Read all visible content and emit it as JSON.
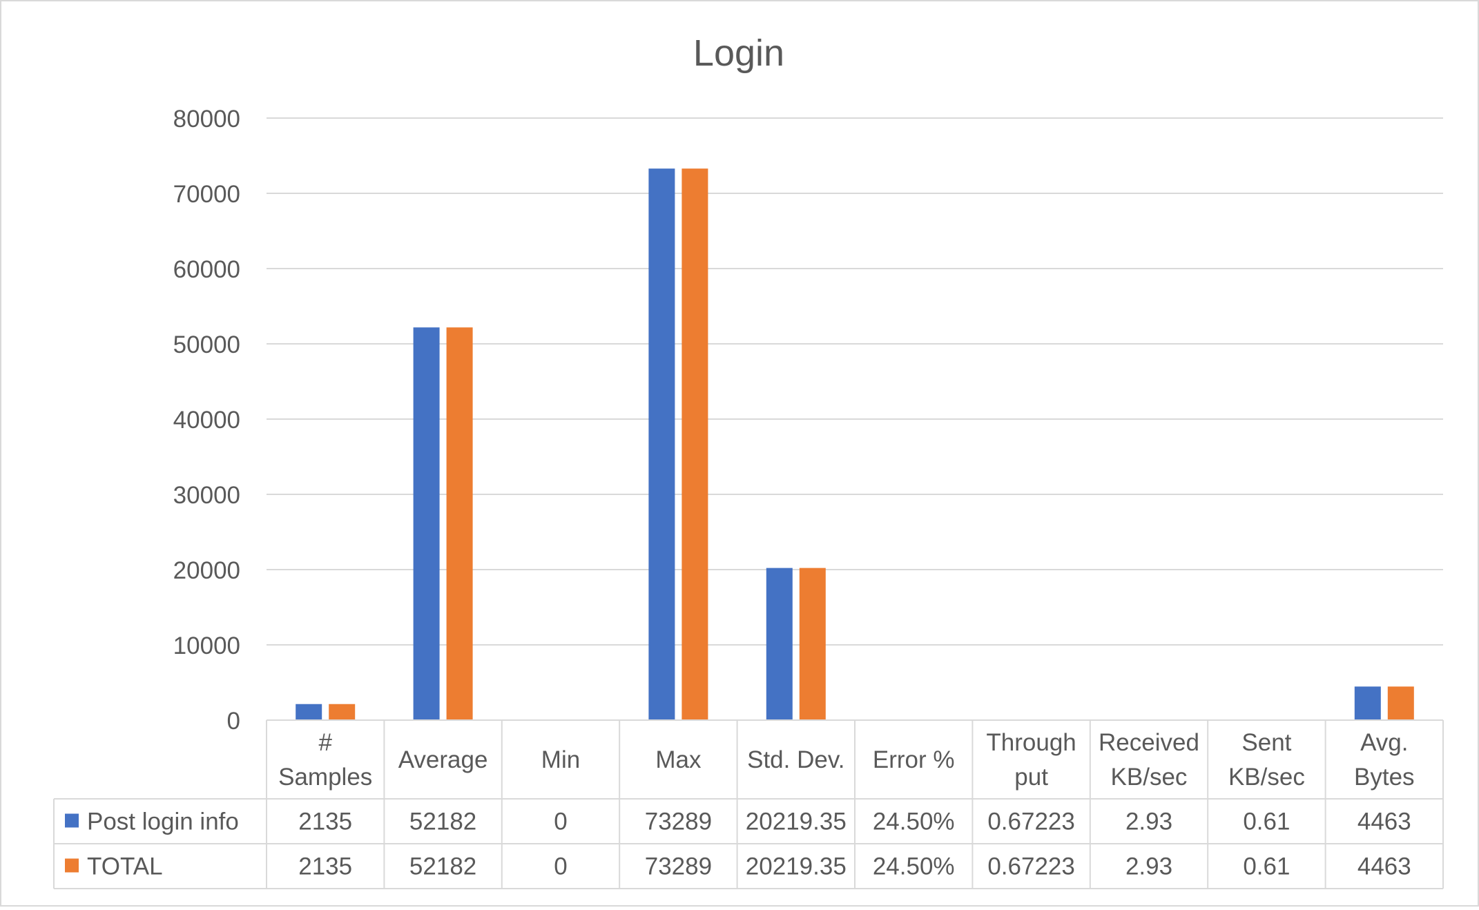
{
  "chart_data": {
    "type": "bar",
    "title": "Login",
    "categories": [
      [
        "#",
        "Samples"
      ],
      [
        "Average"
      ],
      [
        "Min"
      ],
      [
        "Max"
      ],
      [
        "Std. Dev."
      ],
      [
        "Error %"
      ],
      [
        "Through",
        "put"
      ],
      [
        "Received",
        "KB/sec"
      ],
      [
        "Sent",
        "KB/sec"
      ],
      [
        "Avg.",
        "Bytes"
      ]
    ],
    "series": [
      {
        "name": "Post login info",
        "color": "#4472C4",
        "values": [
          2135,
          52182,
          0,
          73289,
          20219.35,
          24.5,
          0.67223,
          2.93,
          0.61,
          4463
        ],
        "table_values": [
          "2135",
          "52182",
          "0",
          "73289",
          "20219.35",
          "24.50%",
          "0.67223",
          "2.93",
          "0.61",
          "4463"
        ]
      },
      {
        "name": "TOTAL",
        "color": "#ED7D31",
        "values": [
          2135,
          52182,
          0,
          73289,
          20219.35,
          24.5,
          0.67223,
          2.93,
          0.61,
          4463
        ],
        "table_values": [
          "2135",
          "52182",
          "0",
          "73289",
          "20219.35",
          "24.50%",
          "0.67223",
          "2.93",
          "0.61",
          "4463"
        ]
      }
    ],
    "ylim": [
      0,
      80000
    ],
    "yticks": [
      0,
      10000,
      20000,
      30000,
      40000,
      50000,
      60000,
      70000,
      80000
    ],
    "grid": true,
    "data_table": true,
    "legend": "in-table",
    "colors": {
      "grid": "#D9D9D9",
      "text": "#595959",
      "title": "#595959",
      "border": "#D9D9D9"
    }
  }
}
